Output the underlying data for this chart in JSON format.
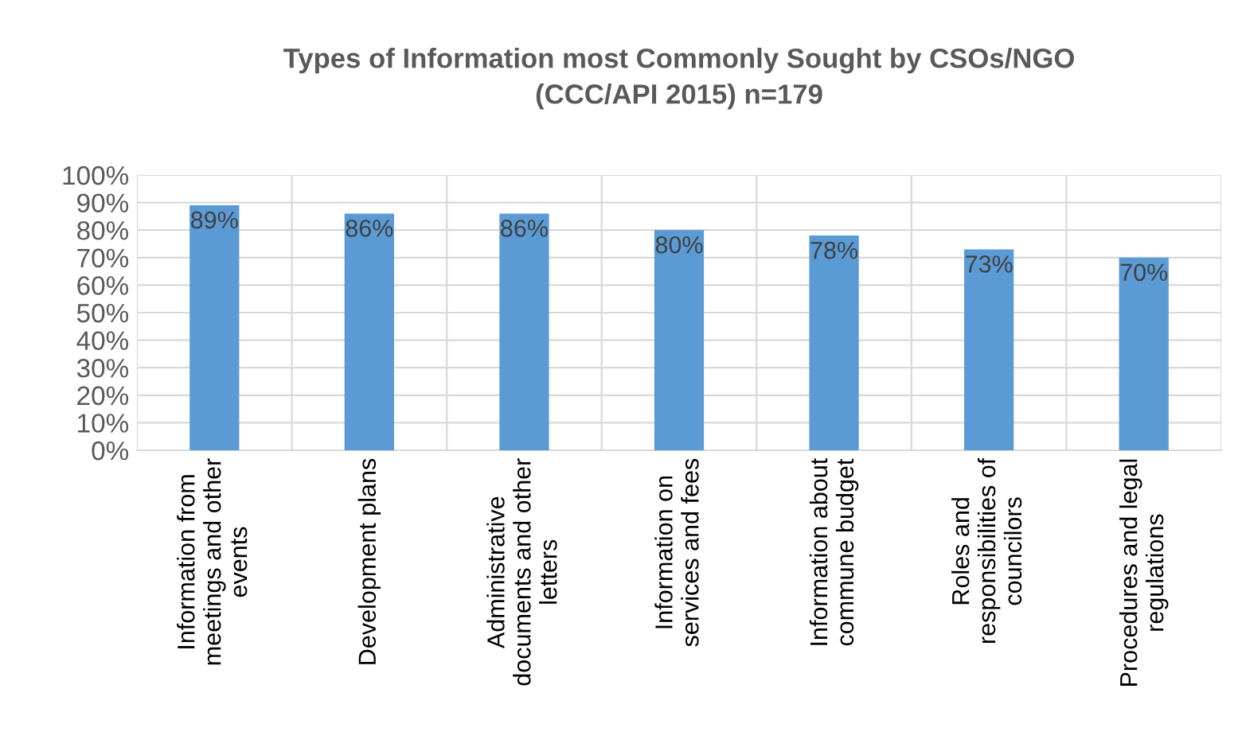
{
  "chart_data": {
    "type": "bar",
    "title": "Types of Information most Commonly Sought by CSOs/NGO\n(CCC/API 2015) n=179",
    "categories": [
      "Information from\nmeetings and other\nevents",
      "Development plans",
      "Administrative\ndocuments and other\nletters",
      "Information on\nservices and fees",
      "Information about\ncommune budget",
      "Roles and\nresponsibilities of\ncouncilors",
      "Procedures and legal\nregulations"
    ],
    "values": [
      89,
      86,
      86,
      80,
      78,
      73,
      70
    ],
    "color": "#5b9bd5",
    "ylim": [
      0,
      100
    ],
    "yticks": [
      {
        "value": 0,
        "label": "0%"
      },
      {
        "value": 10,
        "label": "10%"
      },
      {
        "value": 20,
        "label": "20%"
      },
      {
        "value": 30,
        "label": "30%"
      },
      {
        "value": 40,
        "label": "40%"
      },
      {
        "value": 50,
        "label": "50%"
      },
      {
        "value": 60,
        "label": "60%"
      },
      {
        "value": 70,
        "label": "70%"
      },
      {
        "value": 80,
        "label": "80%"
      },
      {
        "value": 90,
        "label": "90%"
      },
      {
        "value": 100,
        "label": "100%"
      }
    ],
    "value_labels": [
      "89%",
      "86%",
      "86%",
      "80%",
      "78%",
      "73%",
      "70%"
    ],
    "grid": true
  }
}
